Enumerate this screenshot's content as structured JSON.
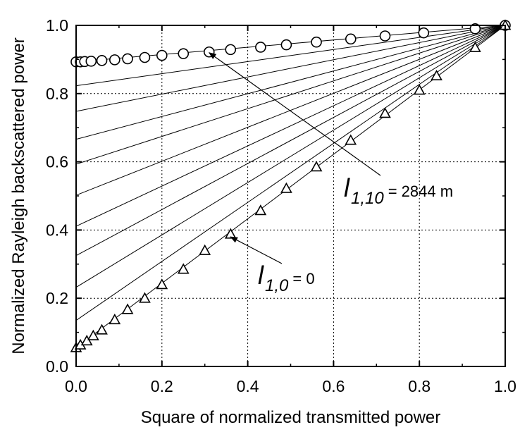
{
  "chart_data": {
    "type": "scatter",
    "xlabel": "Square of normalized transmitted power",
    "ylabel": "Normalized Rayleigh backscattered power",
    "xlim": [
      0.0,
      1.0
    ],
    "ylim": [
      0.0,
      1.0
    ],
    "xticks": [
      "0.0",
      "0.2",
      "0.4",
      "0.6",
      "0.8",
      "1.0"
    ],
    "yticks": [
      "0.0",
      "0.2",
      "0.4",
      "0.6",
      "0.8",
      "1.0"
    ],
    "grid": true,
    "series": [
      {
        "marker": "circle",
        "points": [
          [
            0.0,
            0.893
          ],
          [
            0.01,
            0.893
          ],
          [
            0.02,
            0.894
          ],
          [
            0.035,
            0.895
          ],
          [
            0.06,
            0.897
          ],
          [
            0.09,
            0.899
          ],
          [
            0.12,
            0.902
          ],
          [
            0.16,
            0.906
          ],
          [
            0.2,
            0.912
          ],
          [
            0.25,
            0.917
          ],
          [
            0.31,
            0.922
          ],
          [
            0.36,
            0.929
          ],
          [
            0.43,
            0.936
          ],
          [
            0.49,
            0.943
          ],
          [
            0.56,
            0.951
          ],
          [
            0.64,
            0.96
          ],
          [
            0.72,
            0.969
          ],
          [
            0.81,
            0.978
          ],
          [
            0.93,
            0.99
          ],
          [
            1.0,
            1.0
          ]
        ]
      },
      {
        "marker": "triangle",
        "points": [
          [
            0.0,
            0.055
          ],
          [
            0.01,
            0.063
          ],
          [
            0.025,
            0.075
          ],
          [
            0.04,
            0.09
          ],
          [
            0.06,
            0.107
          ],
          [
            0.09,
            0.137
          ],
          [
            0.12,
            0.167
          ],
          [
            0.16,
            0.2
          ],
          [
            0.2,
            0.24
          ],
          [
            0.25,
            0.285
          ],
          [
            0.3,
            0.34
          ],
          [
            0.36,
            0.388
          ],
          [
            0.43,
            0.457
          ],
          [
            0.49,
            0.522
          ],
          [
            0.56,
            0.585
          ],
          [
            0.64,
            0.663
          ],
          [
            0.72,
            0.742
          ],
          [
            0.8,
            0.81
          ],
          [
            0.84,
            0.852
          ],
          [
            0.93,
            0.935
          ],
          [
            1.0,
            1.0
          ]
        ]
      }
    ],
    "fit_line_intercepts": [
      0.055,
      0.135,
      0.232,
      0.325,
      0.411,
      0.502,
      0.593,
      0.666,
      0.748,
      0.823,
      0.893
    ],
    "annotations": [
      {
        "main": "l",
        "sub": "1,10",
        "value": "= 2844 m",
        "arrow_to": [
          0.31,
          0.92
        ]
      },
      {
        "main": "l",
        "sub": "1,0",
        "value": "= 0",
        "arrow_to": [
          0.36,
          0.38
        ]
      }
    ]
  }
}
